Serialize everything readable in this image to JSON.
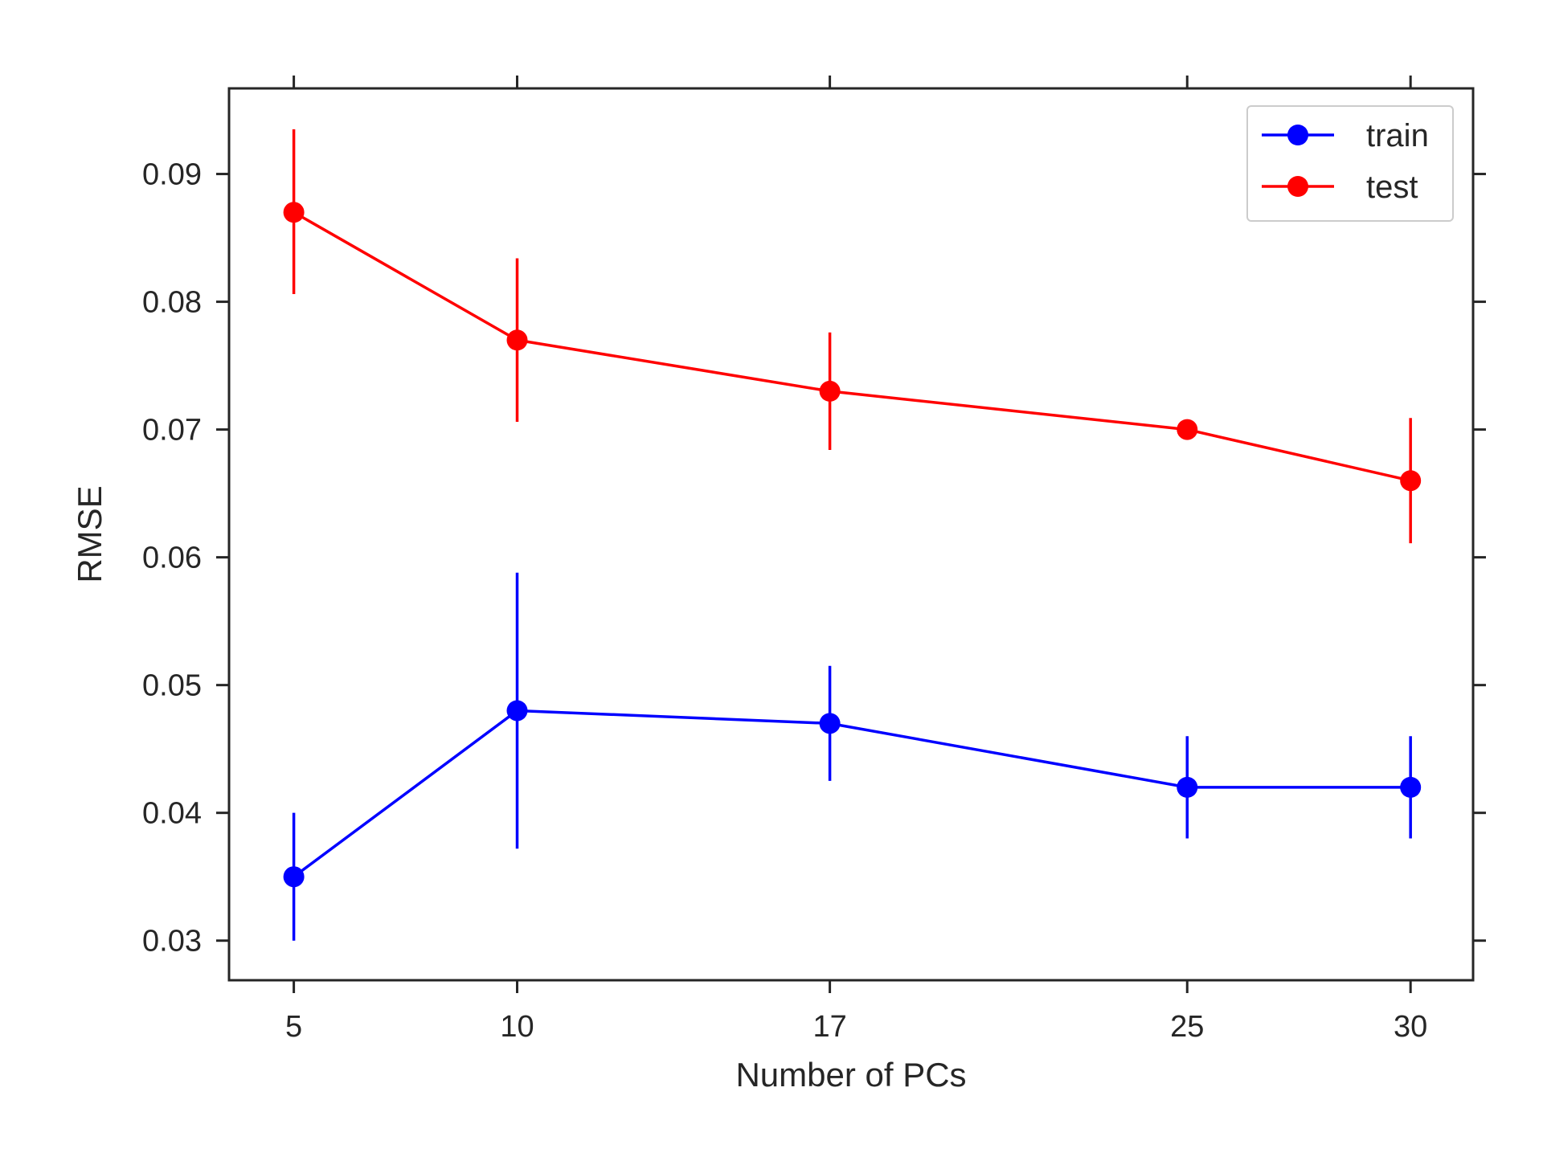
{
  "chart_data": {
    "type": "line",
    "title": "",
    "xlabel": "Number of PCs",
    "ylabel": "RMSE",
    "x": [
      5,
      10,
      17,
      25,
      30
    ],
    "xlim": [
      3.55,
      31.4
    ],
    "ylim": [
      0.0269,
      0.0967
    ],
    "xticks": [
      5,
      10,
      17,
      25,
      30
    ],
    "yticks": [
      0.03,
      0.04,
      0.05,
      0.06,
      0.07,
      0.08,
      0.09
    ],
    "ytick_labels": [
      "0.03",
      "0.04",
      "0.05",
      "0.06",
      "0.07",
      "0.08",
      "0.09"
    ],
    "grid": false,
    "legend_position": "top-right",
    "series": [
      {
        "name": "train",
        "color": "#0000ff",
        "values": [
          0.035,
          0.048,
          0.047,
          0.042,
          0.042
        ],
        "err_low": [
          0.03,
          0.0372,
          0.0425,
          0.038,
          0.038
        ],
        "err_high": [
          0.04,
          0.0588,
          0.0515,
          0.046,
          0.046
        ]
      },
      {
        "name": "test",
        "color": "#ff0000",
        "values": [
          0.087,
          0.077,
          0.073,
          0.07,
          0.066
        ],
        "err_low": [
          0.0806,
          0.0706,
          0.0684,
          0.07,
          0.0611
        ],
        "err_high": [
          0.0935,
          0.0834,
          0.0776,
          0.07,
          0.0709
        ]
      }
    ]
  }
}
